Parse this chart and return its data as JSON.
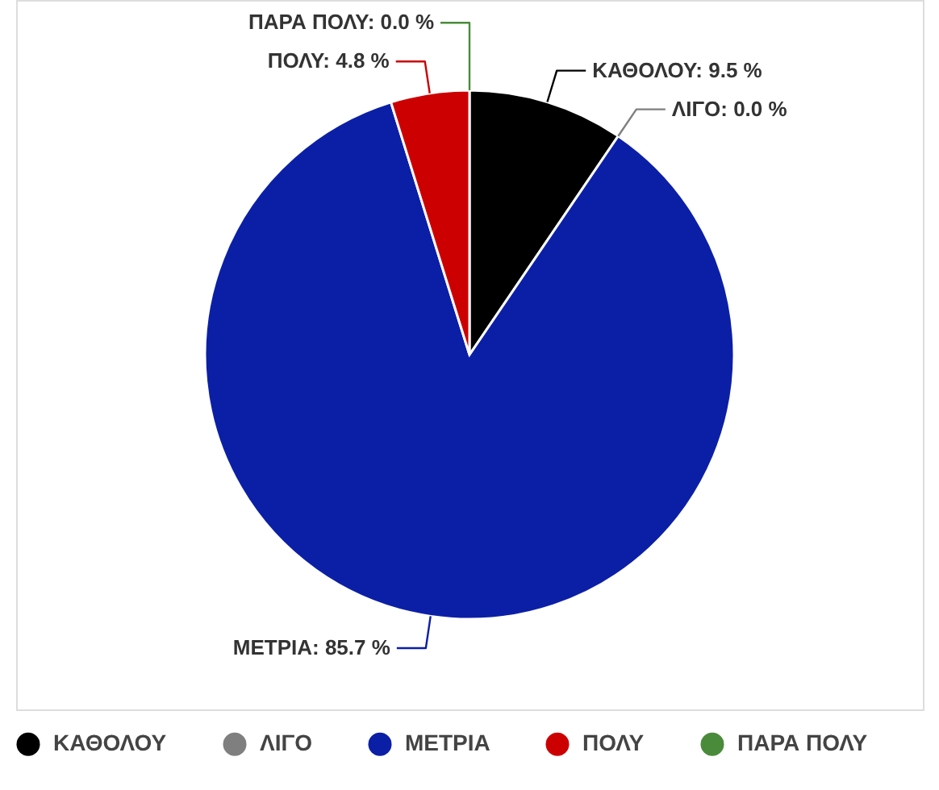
{
  "chart_data": {
    "type": "pie",
    "categories": [
      "ΚΑΘΟΛΟΥ",
      "ΛΙΓΟ",
      "ΜΕΤΡΙΑ",
      "ΠΟΛΥ",
      "ΠΑΡΑ ΠΟΛΥ"
    ],
    "values": [
      9.5,
      0.0,
      85.7,
      4.8,
      0.0
    ],
    "colors": [
      "#000000",
      "#7f7f7f",
      "#0b1fa6",
      "#cc0000",
      "#4a8b3b"
    ],
    "value_labels": [
      "ΚΑΘΟΛΟΥ: 9.5 %",
      "ΛΙΓΟ: 0.0 %",
      "ΜΕΤΡΙΑ: 85.7 %",
      "ΠΟΛΥ: 4.8 %",
      "ΠΑΡΑ ΠΟΛΥ: 0.0 %"
    ],
    "legend": "bottom"
  }
}
